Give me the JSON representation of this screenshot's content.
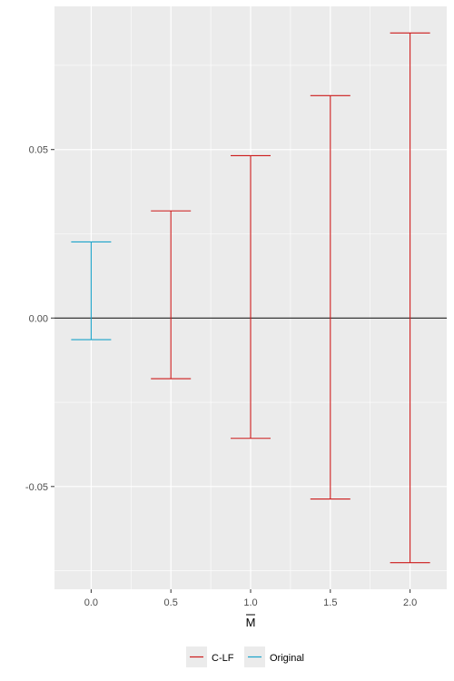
{
  "chart_data": {
    "type": "errorbar",
    "title": "",
    "xlabel": "M",
    "xlabel_overline": true,
    "ylabel": "",
    "x_ticks": [
      "0.0",
      "0.5",
      "1.0",
      "1.5",
      "2.0"
    ],
    "y_ticks": [
      "-0.05",
      "0.00",
      "0.05"
    ],
    "xlim": [
      -0.23,
      2.23
    ],
    "ylim": [
      -0.0805,
      0.0925
    ],
    "grid": true,
    "reference_line_y": 0,
    "legend_position": "bottom",
    "series": [
      {
        "name": "C-LF",
        "color": "#cc1b1b",
        "points": [
          {
            "x": 0.5,
            "ymin": -0.018,
            "ymax": 0.0318
          },
          {
            "x": 1.0,
            "ymin": -0.0357,
            "ymax": 0.0482
          },
          {
            "x": 1.5,
            "ymin": -0.0537,
            "ymax": 0.066
          },
          {
            "x": 2.0,
            "ymin": -0.0726,
            "ymax": 0.0846
          }
        ]
      },
      {
        "name": "Original",
        "color": "#1aa3c9",
        "points": [
          {
            "x": 0.0,
            "ymin": -0.0064,
            "ymax": 0.0226
          }
        ]
      }
    ]
  }
}
